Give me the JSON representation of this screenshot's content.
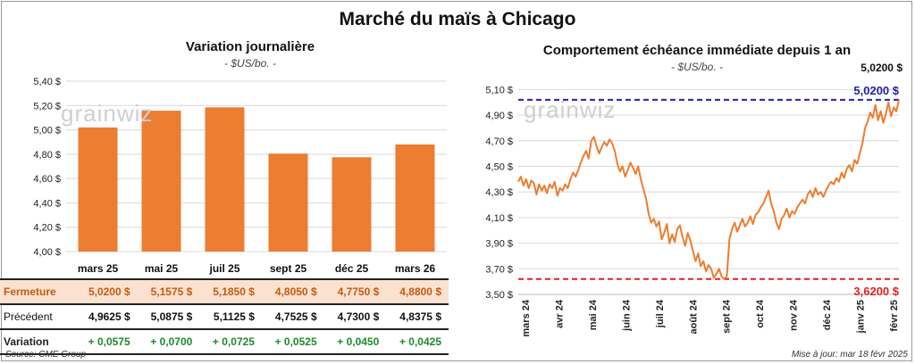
{
  "title": "Marché du maïs à Chicago",
  "watermark": "grainwiz",
  "left_panel": {
    "subtitle": "Variation journalière",
    "unit": "- $US/bo. -"
  },
  "right_panel": {
    "subtitle": "Comportement échéance immédiate depuis 1 an",
    "unit": "- $US/bo. -"
  },
  "table": {
    "rows": [
      {
        "label": "Fermeture",
        "values": [
          "5,0200  $",
          "5,1575  $",
          "5,1850  $",
          "4,8050  $",
          "4,7750  $",
          "4,8800  $"
        ]
      },
      {
        "label": "Précédent",
        "values": [
          "4,9625  $",
          "5,0875  $",
          "5,1125  $",
          "4,7525  $",
          "4,7300  $",
          "4,8375  $"
        ]
      },
      {
        "label": "Variation",
        "values": [
          "+ 0,0575",
          "+ 0,0700",
          "+ 0,0725",
          "+ 0,0525",
          "+ 0,0450",
          "+ 0,0425"
        ]
      }
    ]
  },
  "footer": {
    "source": "Source: CME Group",
    "updated": "Mise à jour: mar 18 févr 2025"
  },
  "colors": {
    "bar": "#ed7d31",
    "line": "#ed7d31",
    "upper_ref": "#2222aa",
    "lower_ref": "#e02020",
    "gain": "#1e8a2e"
  },
  "chart_data": [
    {
      "type": "bar",
      "title": "Variation journalière",
      "categories": [
        "mars 25",
        "mai 25",
        "juil 25",
        "sept 25",
        "déc 25",
        "mars 26"
      ],
      "values": [
        5.02,
        5.1575,
        5.185,
        4.805,
        4.775,
        4.88
      ],
      "ylim": [
        4.0,
        5.4
      ],
      "yticks": [
        "4,00 $",
        "4,20 $",
        "4,40 $",
        "4,60 $",
        "4,80 $",
        "5,00 $",
        "5,20 $",
        "5,40 $"
      ],
      "grid": true
    },
    {
      "type": "line",
      "title": "Comportement échéance immédiate depuis 1 an",
      "x_labels": [
        "mars 24",
        "avr 24",
        "mai 24",
        "juin 24",
        "juil 24",
        "août 24",
        "sept 24",
        "oct 24",
        "nov 24",
        "déc 24",
        "janv 25",
        "févr 25"
      ],
      "ylim": [
        3.5,
        5.2
      ],
      "yticks": [
        "3,50 $",
        "3,70 $",
        "3,90 $",
        "4,10 $",
        "4,30 $",
        "4,50 $",
        "4,70 $",
        "4,90 $",
        "5,10 $"
      ],
      "series": [
        {
          "values": [
            4.38,
            4.42,
            4.35,
            4.4,
            4.33,
            4.39,
            4.37,
            4.28,
            4.36,
            4.31,
            4.35,
            4.29,
            4.36,
            4.33,
            4.38,
            4.27,
            4.33,
            4.31,
            4.36,
            4.33,
            4.4,
            4.45,
            4.42,
            4.47,
            4.53,
            4.58,
            4.62,
            4.56,
            4.7,
            4.73,
            4.66,
            4.6,
            4.65,
            4.69,
            4.66,
            4.71,
            4.68,
            4.62,
            4.52,
            4.46,
            4.5,
            4.42,
            4.47,
            4.53,
            4.49,
            4.44,
            4.5,
            4.4,
            4.32,
            4.25,
            4.13,
            4.06,
            4.09,
            4.03,
            4.07,
            3.93,
            3.98,
            4.05,
            3.9,
            3.97,
            3.91,
            4.01,
            4.04,
            3.95,
            3.88,
            3.98,
            3.92,
            3.84,
            3.76,
            3.82,
            3.72,
            3.76,
            3.68,
            3.73,
            3.7,
            3.63,
            3.66,
            3.7,
            3.64,
            3.62,
            3.64,
            3.93,
            4.01,
            4.06,
            3.99,
            4.04,
            4.09,
            4.03,
            4.06,
            4.11,
            4.05,
            4.12,
            4.14,
            4.18,
            4.21,
            4.26,
            4.31,
            4.21,
            4.15,
            4.06,
            4.01,
            4.09,
            4.12,
            4.17,
            4.1,
            4.15,
            4.13,
            4.18,
            4.21,
            4.24,
            4.21,
            4.28,
            4.31,
            4.26,
            4.33,
            4.28,
            4.3,
            4.26,
            4.31,
            4.35,
            4.38,
            4.36,
            4.41,
            4.38,
            4.45,
            4.41,
            4.48,
            4.51,
            4.46,
            4.55,
            4.52,
            4.6,
            4.68,
            4.8,
            4.85,
            4.92,
            4.88,
            4.98,
            4.86,
            4.93,
            4.84,
            4.91,
            5.0,
            4.89,
            4.96,
            4.93,
            5.02
          ]
        }
      ],
      "reference_lines": [
        {
          "value": 5.02,
          "label": "5,0200 $"
        },
        {
          "value": 3.62,
          "label": "3,6200 $"
        }
      ],
      "annotation": "5,0200 $",
      "grid": true
    }
  ]
}
